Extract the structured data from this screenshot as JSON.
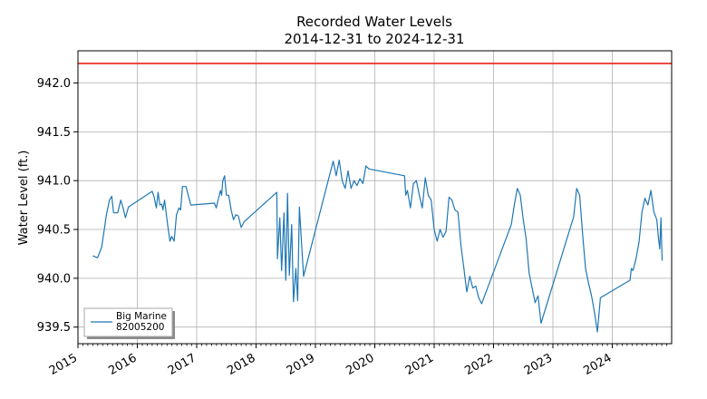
{
  "chart_data": {
    "type": "line",
    "title_line1": "Recorded Water Levels",
    "title_line2": "2014-12-31 to 2024-12-31",
    "xlabel": "",
    "ylabel": "Water Level (ft.)",
    "xlim": [
      2015.0,
      2025.0
    ],
    "ylim": [
      939.33,
      942.33
    ],
    "x_ticks": [
      2015,
      2016,
      2017,
      2018,
      2019,
      2020,
      2021,
      2022,
      2023,
      2024
    ],
    "x_tick_labels": [
      "2015",
      "2016",
      "2017",
      "2018",
      "2019",
      "2020",
      "2021",
      "2022",
      "2023",
      "2024"
    ],
    "y_ticks": [
      939.5,
      940.0,
      940.5,
      941.0,
      941.5,
      942.0
    ],
    "y_tick_labels": [
      "939.5",
      "940.0",
      "940.5",
      "941.0",
      "941.5",
      "942.0"
    ],
    "grid": true,
    "reference_line": {
      "y": 942.2,
      "color": "#e8302a"
    },
    "legend": {
      "placement": "bottom-left",
      "label_line1": "Big Marine",
      "label_line2": "82005200"
    },
    "series": [
      {
        "name": "Big Marine 82005200",
        "color": "#1f77b4",
        "x": [
          2015.25,
          2015.33,
          2015.4,
          2015.48,
          2015.53,
          2015.57,
          2015.6,
          2015.67,
          2015.72,
          2015.76,
          2015.8,
          2015.85,
          2016.25,
          2016.28,
          2016.32,
          2016.35,
          2016.38,
          2016.41,
          2016.43,
          2016.46,
          2016.51,
          2016.55,
          2016.58,
          2016.62,
          2016.66,
          2016.7,
          2016.73,
          2016.76,
          2016.82,
          2016.9,
          2017.3,
          2017.33,
          2017.36,
          2017.4,
          2017.42,
          2017.44,
          2017.47,
          2017.5,
          2017.54,
          2017.58,
          2017.62,
          2017.66,
          2017.7,
          2017.75,
          2017.8,
          2018.35,
          2018.36,
          2018.4,
          2018.43,
          2018.47,
          2018.5,
          2018.53,
          2018.56,
          2018.6,
          2018.63,
          2018.67,
          2018.7,
          2018.73,
          2018.8,
          2019.3,
          2019.35,
          2019.4,
          2019.45,
          2019.5,
          2019.55,
          2019.6,
          2019.65,
          2019.7,
          2019.75,
          2019.8,
          2019.85,
          2019.9,
          2020.5,
          2020.52,
          2020.55,
          2020.6,
          2020.65,
          2020.7,
          2020.75,
          2020.8,
          2020.85,
          2020.9,
          2020.95,
          2021.0,
          2021.05,
          2021.1,
          2021.15,
          2021.2,
          2021.25,
          2021.3,
          2021.35,
          2021.4,
          2021.45,
          2021.5,
          2021.55,
          2021.6,
          2021.65,
          2021.7,
          2021.75,
          2021.8,
          2022.3,
          2022.35,
          2022.4,
          2022.45,
          2022.5,
          2022.55,
          2022.6,
          2022.65,
          2022.7,
          2022.75,
          2022.8,
          2023.35,
          2023.4,
          2023.45,
          2023.5,
          2023.55,
          2023.6,
          2023.65,
          2023.7,
          2023.75,
          2023.8,
          2024.3,
          2024.32,
          2024.35,
          2024.4,
          2024.45,
          2024.5,
          2024.55,
          2024.6,
          2024.65,
          2024.7,
          2024.75,
          2024.78,
          2024.8,
          2024.82,
          2024.84
        ],
        "y": [
          940.23,
          940.21,
          940.32,
          940.65,
          940.8,
          940.84,
          940.67,
          940.67,
          940.8,
          940.72,
          940.62,
          940.73,
          940.89,
          940.84,
          940.72,
          940.88,
          940.75,
          940.76,
          940.7,
          940.8,
          940.55,
          940.38,
          940.43,
          940.38,
          940.65,
          940.72,
          940.7,
          940.94,
          940.94,
          940.75,
          940.77,
          940.72,
          940.8,
          940.9,
          940.85,
          941.0,
          941.05,
          940.85,
          940.85,
          940.7,
          940.6,
          940.65,
          940.64,
          940.52,
          940.58,
          940.88,
          940.2,
          940.62,
          940.08,
          940.67,
          939.98,
          940.87,
          940.03,
          940.55,
          939.76,
          940.1,
          939.77,
          940.73,
          940.02,
          941.2,
          941.05,
          941.21,
          941.0,
          940.92,
          941.1,
          940.92,
          941.0,
          940.95,
          941.02,
          940.97,
          941.15,
          941.12,
          941.05,
          940.85,
          940.9,
          940.72,
          940.97,
          941.0,
          940.85,
          940.72,
          941.03,
          940.85,
          940.8,
          940.5,
          940.38,
          940.5,
          940.42,
          940.48,
          940.83,
          940.8,
          940.7,
          940.68,
          940.34,
          940.1,
          939.86,
          940.02,
          939.9,
          939.92,
          939.8,
          939.74,
          940.55,
          940.75,
          940.92,
          940.85,
          940.6,
          940.4,
          940.05,
          939.9,
          939.75,
          939.82,
          939.54,
          940.63,
          940.92,
          940.85,
          940.45,
          940.1,
          939.95,
          939.82,
          939.65,
          939.45,
          939.8,
          939.98,
          940.1,
          940.08,
          940.2,
          940.37,
          940.68,
          940.82,
          940.75,
          940.9,
          940.68,
          940.6,
          940.4,
          940.3,
          940.62,
          940.18
        ]
      }
    ]
  }
}
